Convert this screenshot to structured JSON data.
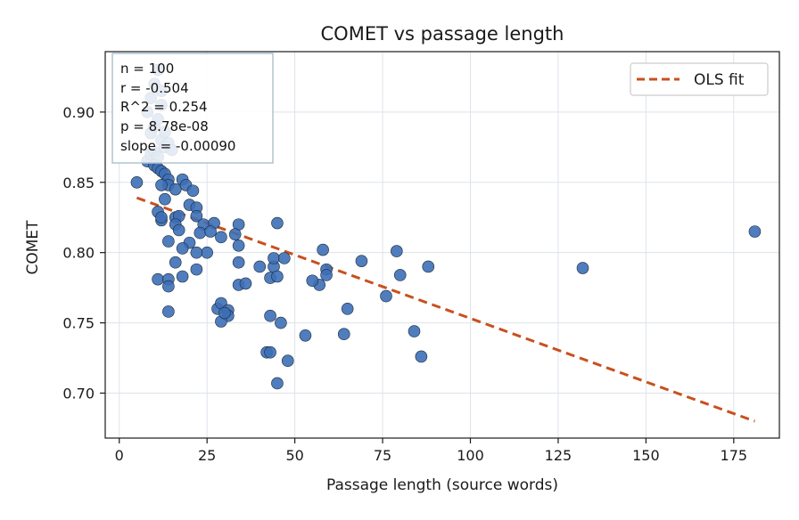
{
  "chart_data": {
    "type": "scatter",
    "title": "COMET vs passage length",
    "xlabel": "Passage length (source words)",
    "ylabel": "COMET",
    "xlim": [
      -4,
      188
    ],
    "ylim": [
      0.668,
      0.943
    ],
    "xticks": [
      0,
      25,
      50,
      75,
      100,
      125,
      150,
      175
    ],
    "yticks": [
      0.7,
      0.75,
      0.8,
      0.85,
      0.9
    ],
    "ytick_labels": [
      "0.70",
      "0.75",
      "0.80",
      "0.85",
      "0.90"
    ],
    "grid": true,
    "legend": {
      "position": "top-right",
      "entries": [
        "OLS fit"
      ]
    },
    "stats_box": {
      "position": "top-left",
      "lines": [
        "n = 100",
        "r = -0.504",
        "R^2 = 0.254",
        "p = 8.78e-08",
        "slope = -0.00090"
      ]
    },
    "fit_line": {
      "name": "OLS fit",
      "x": [
        5,
        181
      ],
      "y": [
        0.839,
        0.68
      ],
      "color": "#c8501e",
      "style": "dashed"
    },
    "point_color": "#3d6fb6",
    "points": [
      [
        5,
        0.85
      ],
      [
        8,
        0.865
      ],
      [
        9,
        0.87
      ],
      [
        10,
        0.872
      ],
      [
        11,
        0.868
      ],
      [
        9,
        0.885
      ],
      [
        10,
        0.89
      ],
      [
        11,
        0.895
      ],
      [
        12,
        0.88
      ],
      [
        13,
        0.875
      ],
      [
        8,
        0.9
      ],
      [
        9,
        0.91
      ],
      [
        10,
        0.92
      ],
      [
        11,
        0.93
      ],
      [
        12,
        0.905
      ],
      [
        14,
        0.878
      ],
      [
        15,
        0.873
      ],
      [
        13,
        0.886
      ],
      [
        12,
        0.915
      ],
      [
        10,
        0.862
      ],
      [
        11,
        0.86
      ],
      [
        12,
        0.858
      ],
      [
        13,
        0.856
      ],
      [
        14,
        0.852
      ],
      [
        14,
        0.848
      ],
      [
        12,
        0.848
      ],
      [
        16,
        0.845
      ],
      [
        18,
        0.852
      ],
      [
        19,
        0.848
      ],
      [
        21,
        0.844
      ],
      [
        13,
        0.838
      ],
      [
        11,
        0.829
      ],
      [
        12,
        0.823
      ],
      [
        12,
        0.825
      ],
      [
        16,
        0.825
      ],
      [
        17,
        0.826
      ],
      [
        20,
        0.834
      ],
      [
        22,
        0.832
      ],
      [
        22,
        0.826
      ],
      [
        24,
        0.82
      ],
      [
        27,
        0.821
      ],
      [
        34,
        0.82
      ],
      [
        45,
        0.821
      ],
      [
        16,
        0.82
      ],
      [
        17,
        0.816
      ],
      [
        20,
        0.807
      ],
      [
        23,
        0.814
      ],
      [
        25,
        0.8
      ],
      [
        29,
        0.811
      ],
      [
        33,
        0.813
      ],
      [
        34,
        0.805
      ],
      [
        14,
        0.808
      ],
      [
        18,
        0.803
      ],
      [
        22,
        0.8
      ],
      [
        16,
        0.793
      ],
      [
        22,
        0.788
      ],
      [
        18,
        0.783
      ],
      [
        11,
        0.781
      ],
      [
        14,
        0.781
      ],
      [
        14,
        0.776
      ],
      [
        14,
        0.758
      ],
      [
        34,
        0.793
      ],
      [
        34,
        0.777
      ],
      [
        36,
        0.778
      ],
      [
        43,
        0.782
      ],
      [
        44,
        0.79
      ],
      [
        44,
        0.796
      ],
      [
        45,
        0.783
      ],
      [
        47,
        0.796
      ],
      [
        58,
        0.802
      ],
      [
        59,
        0.788
      ],
      [
        59,
        0.784
      ],
      [
        57,
        0.777
      ],
      [
        69,
        0.794
      ],
      [
        79,
        0.801
      ],
      [
        80,
        0.784
      ],
      [
        76,
        0.769
      ],
      [
        88,
        0.79
      ],
      [
        28,
        0.76
      ],
      [
        29,
        0.764
      ],
      [
        31,
        0.759
      ],
      [
        31,
        0.755
      ],
      [
        29,
        0.751
      ],
      [
        43,
        0.755
      ],
      [
        46,
        0.75
      ],
      [
        53,
        0.741
      ],
      [
        64,
        0.742
      ],
      [
        84,
        0.744
      ],
      [
        86,
        0.726
      ],
      [
        42,
        0.729
      ],
      [
        43,
        0.729
      ],
      [
        48,
        0.723
      ],
      [
        45,
        0.707
      ],
      [
        132,
        0.789
      ],
      [
        181,
        0.815
      ],
      [
        30,
        0.757
      ],
      [
        40,
        0.79
      ],
      [
        55,
        0.78
      ],
      [
        65,
        0.76
      ],
      [
        26,
        0.815
      ]
    ]
  }
}
